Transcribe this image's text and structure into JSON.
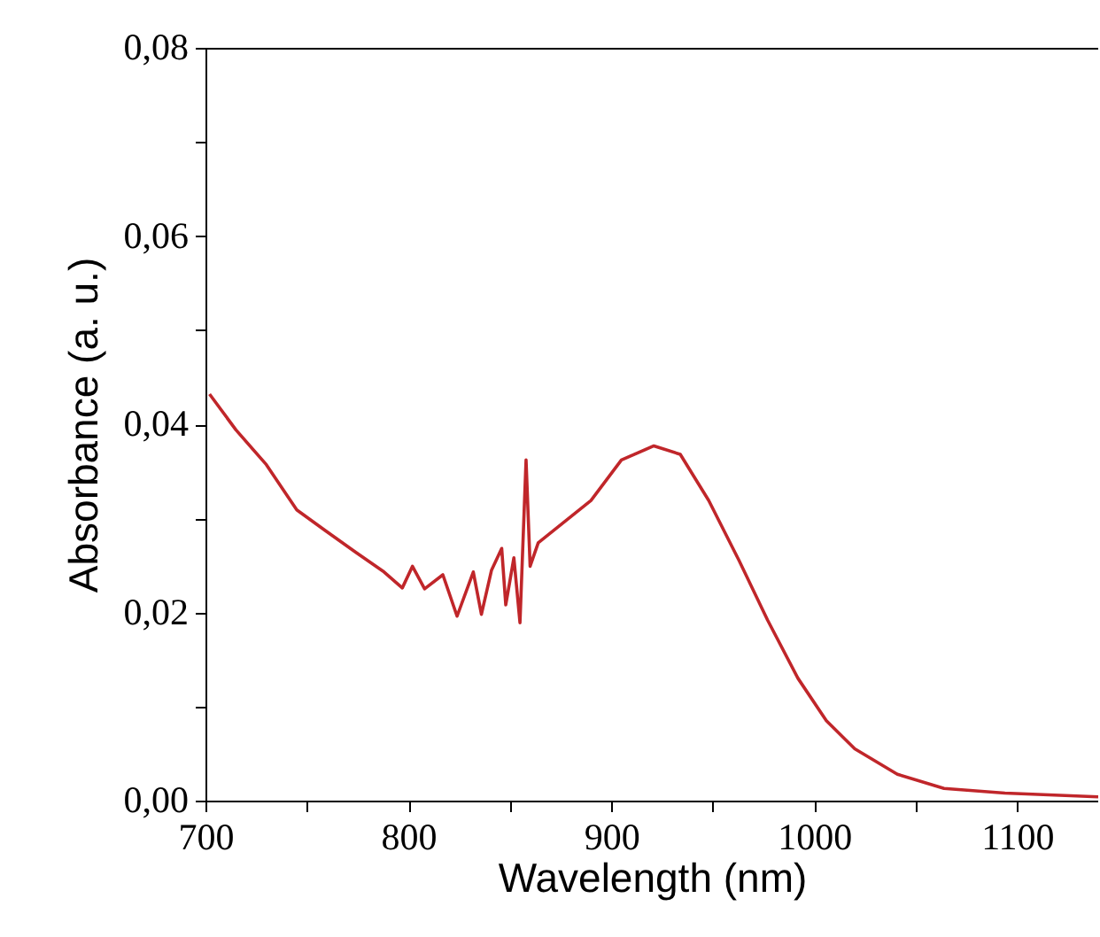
{
  "chart_data": {
    "type": "line",
    "xlabel": "Wavelength (nm)",
    "ylabel": "Absorbance (a. u.)",
    "xlim": [
      700,
      1140
    ],
    "ylim": [
      0,
      0.08
    ],
    "xticks": [
      700,
      {
        "value": 750,
        "label": null
      },
      800,
      {
        "value": 850,
        "label": null
      },
      900,
      {
        "value": 950,
        "label": null
      },
      1000,
      {
        "value": 1050,
        "label": null
      },
      1100
    ],
    "yticks": [
      {
        "value": 0,
        "label": "0,00"
      },
      {
        "value": 0.01,
        "label": null
      },
      {
        "value": 0.02,
        "label": "0,02"
      },
      {
        "value": 0.03,
        "label": null
      },
      {
        "value": 0.04,
        "label": "0,04"
      },
      {
        "value": 0.05,
        "label": null
      },
      {
        "value": 0.06,
        "label": "0,06"
      },
      {
        "value": 0.07,
        "label": null
      },
      {
        "value": 0.08,
        "label": "0,08"
      }
    ],
    "x": [
      702,
      715,
      730,
      745,
      759,
      774,
      788,
      797,
      802,
      808,
      817,
      824,
      832,
      836,
      841,
      846,
      848,
      852,
      855,
      858,
      860,
      864,
      890,
      905,
      921,
      934,
      948,
      963,
      977,
      992,
      1006,
      1020,
      1041,
      1064,
      1094,
      1140
    ],
    "series": [
      {
        "color": "#c0262a",
        "values": [
          0.0432,
          0.0394,
          0.0357,
          0.0309,
          0.0287,
          0.0264,
          0.0243,
          0.0226,
          0.0249,
          0.0225,
          0.024,
          0.0196,
          0.0243,
          0.0198,
          0.0245,
          0.0268,
          0.0208,
          0.0258,
          0.0189,
          0.0362,
          0.0249,
          0.0274,
          0.0319,
          0.0362,
          0.0377,
          0.0368,
          0.0319,
          0.0255,
          0.0192,
          0.013,
          0.0085,
          0.0055,
          0.0028,
          0.0013,
          0.0008,
          0.0004
        ]
      }
    ],
    "grid": false,
    "marker": "none",
    "line_style": "solid"
  }
}
